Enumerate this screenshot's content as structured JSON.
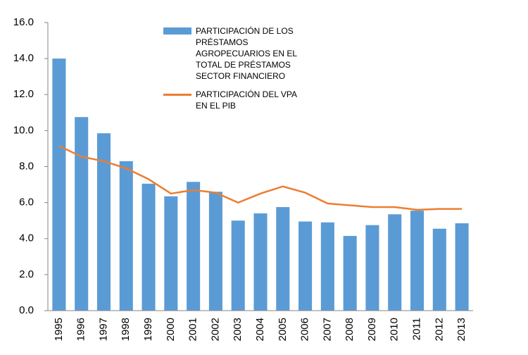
{
  "chart_data": {
    "type": "bar_line",
    "categories": [
      "1995",
      "1996",
      "1997",
      "1998",
      "1999",
      "2000",
      "2001",
      "2002",
      "2003",
      "2004",
      "2005",
      "2006",
      "2007",
      "2008",
      "2009",
      "2010",
      "2011",
      "2012",
      "2013"
    ],
    "series": [
      {
        "name": "PARTICIPACIÓN DE LOS PRÉSTAMOS AGROPECUARIOS EN EL TOTAL DE PRÉSTAMOS SECTOR FINANCIERO",
        "type": "bar",
        "color": "#5b9bd5",
        "values": [
          14.0,
          10.75,
          9.85,
          8.3,
          7.05,
          6.35,
          7.15,
          6.6,
          5.0,
          5.4,
          5.75,
          4.95,
          4.9,
          4.15,
          4.75,
          5.35,
          5.55,
          4.55,
          4.85
        ]
      },
      {
        "name": "PARTICIPACIÓN DEL VPA EN EL PIB",
        "type": "line",
        "color": "#ed7d31",
        "values": [
          9.15,
          8.55,
          8.3,
          7.9,
          7.3,
          6.5,
          6.7,
          6.55,
          6.0,
          6.5,
          6.9,
          6.55,
          5.95,
          5.85,
          5.75,
          5.75,
          5.6,
          5.65,
          5.65
        ]
      }
    ],
    "ylim": [
      0,
      16
    ],
    "yticks": [
      {
        "value": 0,
        "label": "0.0"
      },
      {
        "value": 2,
        "label": "2.0"
      },
      {
        "value": 4,
        "label": "4.0"
      },
      {
        "value": 6,
        "label": "6.0"
      },
      {
        "value": 8,
        "label": "8.0"
      },
      {
        "value": 10,
        "label": "10.0"
      },
      {
        "value": 12,
        "label": "12.0"
      },
      {
        "value": 14,
        "label": "14.0"
      },
      {
        "value": 16,
        "label": "16.0"
      }
    ],
    "grid": false,
    "legend": "top"
  }
}
